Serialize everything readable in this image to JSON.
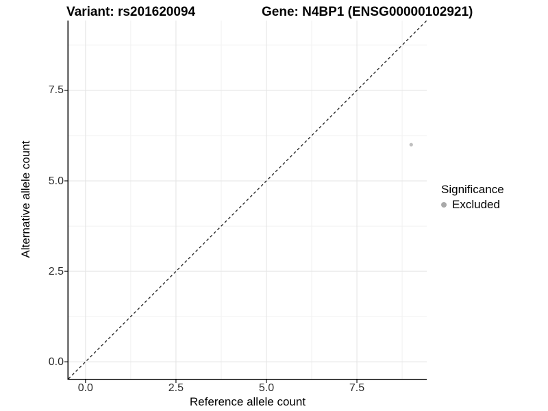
{
  "chart_data": {
    "type": "scatter",
    "title_left": "Variant: rs201620094",
    "title_right": "Gene: N4BP1 (ENSG00000102921)",
    "xlabel": "Reference allele count",
    "ylabel": "Alternative allele count",
    "xlim": [
      -0.47,
      9.43
    ],
    "ylim": [
      -0.47,
      9.43
    ],
    "x_ticks": [
      0.0,
      2.5,
      5.0,
      7.5
    ],
    "x_tick_labels": [
      "0.0",
      "2.5",
      "5.0",
      "7.5"
    ],
    "y_ticks": [
      0.0,
      2.5,
      5.0,
      7.5
    ],
    "y_tick_labels": [
      "0.0",
      "2.5",
      "5.0",
      "7.5"
    ],
    "x_minor_ticks": [
      1.25,
      3.75,
      6.25,
      8.75
    ],
    "y_minor_ticks": [
      1.25,
      3.75,
      6.25,
      8.75
    ],
    "grid": {
      "major_color": "#e5e5e5",
      "minor_color": "#f1f1f1",
      "background": "#ffffff"
    },
    "axis_line_color": "#000000",
    "tick_mark_color": "#222222",
    "identity_line": {
      "style": "dashed",
      "from": [
        -0.47,
        -0.47
      ],
      "to": [
        9.43,
        9.43
      ],
      "color": "#1a1a1a"
    },
    "series": [
      {
        "name": "Excluded",
        "color": "#bfbfbf",
        "point_radius": 2.6,
        "points": [
          {
            "x": 9,
            "y": 6
          }
        ]
      }
    ],
    "legend": {
      "title": "Significance",
      "position": "right",
      "entries": [
        {
          "label": "Excluded",
          "color": "#a9a9a9"
        }
      ]
    }
  }
}
